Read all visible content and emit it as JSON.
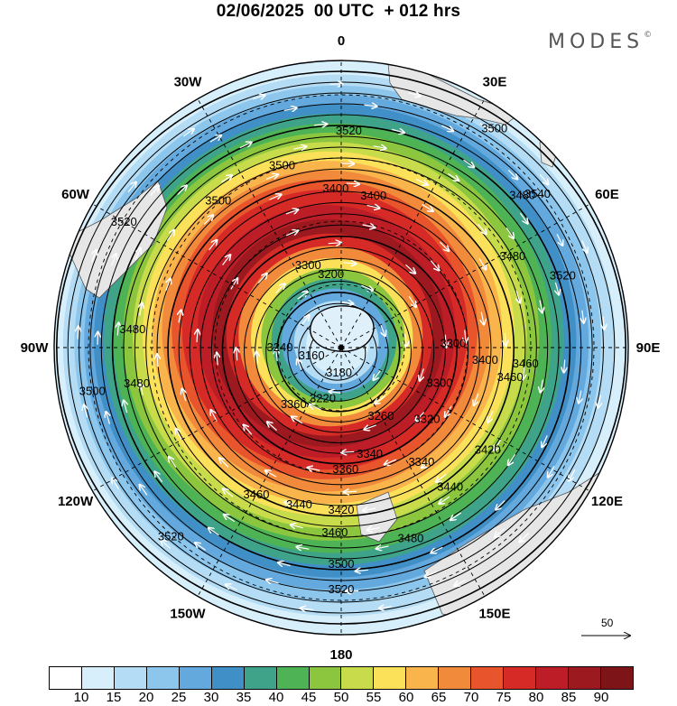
{
  "title": "02/06/2025  00 UTC  + 012 hrs",
  "brand": "MODES",
  "brand_mark": "©",
  "map": {
    "lon_labels": [
      "0",
      "30E",
      "60E",
      "90E",
      "120E",
      "150E",
      "180",
      "150W",
      "120W",
      "90W",
      "60W",
      "30W"
    ],
    "contour_labels": [
      "3520",
      "3500",
      "3400",
      "3500",
      "3480",
      "3520",
      "3480",
      "3300",
      "3360",
      "3200",
      "3240",
      "3160",
      "3180",
      "3220",
      "3260",
      "3300",
      "3320",
      "3340",
      "3360",
      "3400",
      "3400",
      "3300",
      "3460",
      "3480",
      "3500",
      "3460",
      "3440",
      "3420",
      "3460",
      "3480",
      "3500",
      "3520",
      "3540",
      "3520",
      "3480",
      "3460",
      "3500",
      "3520",
      "3340",
      "3420",
      "3440"
    ],
    "wind_vector_reference": "50"
  },
  "colorbar": {
    "labels": [
      "10",
      "15",
      "20",
      "25",
      "30",
      "35",
      "40",
      "45",
      "50",
      "55",
      "60",
      "65",
      "70",
      "75",
      "80",
      "85",
      "90"
    ],
    "colors": [
      "#ffffff",
      "#d7effb",
      "#b4ddf5",
      "#8cc6ec",
      "#64a9de",
      "#4090c7",
      "#3fa389",
      "#4db355",
      "#8cc63f",
      "#c8dc4b",
      "#fbe05a",
      "#f9b54c",
      "#f28a3c",
      "#e8552c",
      "#d62a26",
      "#bd1d26",
      "#9c1a1f"
    ]
  }
}
